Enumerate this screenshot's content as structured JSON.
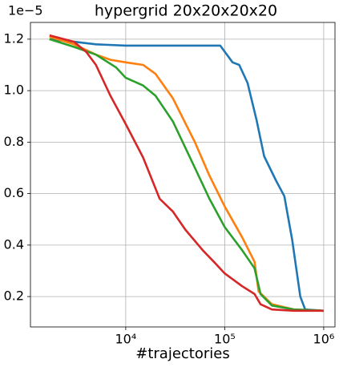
{
  "chart_data": {
    "type": "line",
    "title": "hypergrid 20x20x20x20",
    "x_label": "#trajectories",
    "y_offset_label": "1e−5",
    "x_scale": "log",
    "grid": true,
    "xlim": [
      1090,
      1300000
    ],
    "ylim": [
      0.082,
      1.265
    ],
    "xticks": [
      {
        "value": 10000,
        "label": "10⁴"
      },
      {
        "value": 100000,
        "label": "10⁵"
      },
      {
        "value": 1000000,
        "label": "10⁶"
      }
    ],
    "yticks": [
      0.2,
      0.4,
      0.6,
      0.8,
      {
        "value": 1,
        "label": "1.0"
      },
      1.2
    ],
    "series": [
      {
        "color": "#1f77b4",
        "x": [
          1700,
          3000,
          5000,
          10000,
          30000,
          90000,
          120000,
          140000,
          170000,
          210000,
          250000,
          330000,
          400000,
          480000,
          580000,
          650000,
          1000000
        ],
        "values": [
          1.2,
          1.19,
          1.18,
          1.175,
          1.175,
          1.175,
          1.11,
          1.1,
          1.03,
          0.885,
          0.745,
          0.65,
          0.59,
          0.42,
          0.2,
          0.15,
          0.145
        ]
      },
      {
        "color": "#ff7f0e",
        "x": [
          1700,
          3000,
          5000,
          7000,
          10000,
          15000,
          20000,
          30000,
          50000,
          70000,
          100000,
          150000,
          200000,
          220000,
          300000,
          500000,
          1000000
        ],
        "values": [
          1.21,
          1.18,
          1.14,
          1.12,
          1.11,
          1.1,
          1.065,
          0.97,
          0.8,
          0.67,
          0.55,
          0.43,
          0.335,
          0.22,
          0.17,
          0.15,
          0.145
        ]
      },
      {
        "color": "#2ca02c",
        "x": [
          1700,
          3000,
          5000,
          8000,
          10000,
          15000,
          20000,
          30000,
          50000,
          70000,
          100000,
          150000,
          200000,
          230000,
          300000,
          500000,
          1000000
        ],
        "values": [
          1.2,
          1.17,
          1.14,
          1.09,
          1.05,
          1.02,
          0.98,
          0.88,
          0.7,
          0.58,
          0.47,
          0.38,
          0.31,
          0.21,
          0.165,
          0.15,
          0.145
        ]
      },
      {
        "color": "#d62728",
        "x": [
          1700,
          3000,
          4000,
          5000,
          7000,
          10000,
          15000,
          22000,
          30000,
          40000,
          60000,
          80000,
          100000,
          150000,
          200000,
          230000,
          300000,
          500000,
          1000000
        ],
        "values": [
          1.215,
          1.19,
          1.15,
          1.1,
          0.98,
          0.87,
          0.74,
          0.58,
          0.53,
          0.46,
          0.38,
          0.33,
          0.29,
          0.24,
          0.21,
          0.17,
          0.15,
          0.145,
          0.145
        ]
      }
    ]
  }
}
